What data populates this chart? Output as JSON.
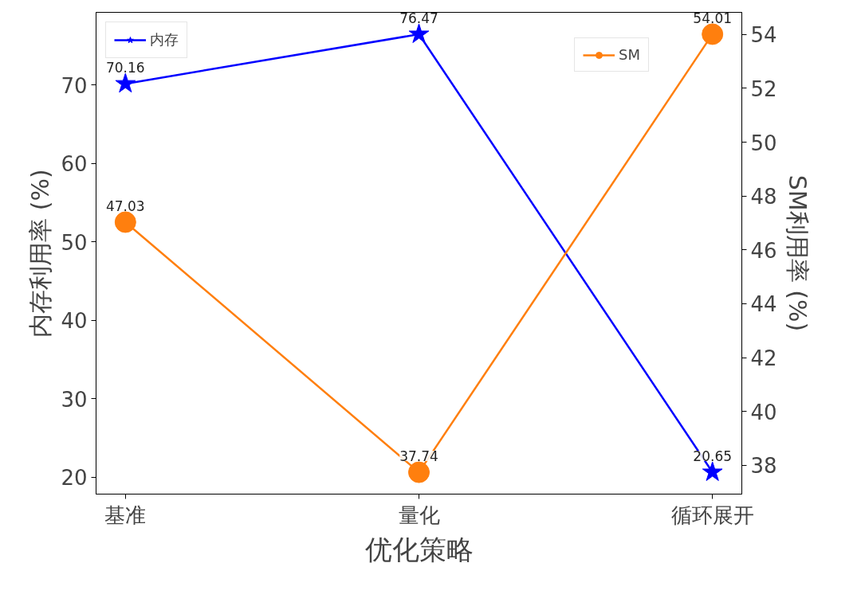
{
  "chart_data": {
    "type": "line",
    "xlabel": "优化策略",
    "ylabel": "内存利用率 (%)",
    "y2label": "SM利用率 (%)",
    "categories": [
      "基准",
      "量化",
      "循环展开"
    ],
    "series": [
      {
        "name": "内存",
        "color": "#0000ff",
        "values": [
          70.16,
          76.47,
          20.65
        ],
        "marker": "star"
      },
      {
        "name": "SM",
        "color": "#ff7f0e",
        "values": [
          47.03,
          37.74,
          54.01
        ],
        "marker": "circle",
        "axis": "y2"
      }
    ],
    "ylim": [
      17.86,
      79.26
    ],
    "yticks": [
      20,
      30,
      40,
      50,
      60,
      70
    ],
    "y2lim": [
      36.93,
      54.82
    ],
    "y2ticks": [
      38,
      40,
      42,
      44,
      46,
      48,
      50,
      52,
      54
    ],
    "data_labels": true,
    "grid": false,
    "legend": "top",
    "line_style": "solid"
  }
}
